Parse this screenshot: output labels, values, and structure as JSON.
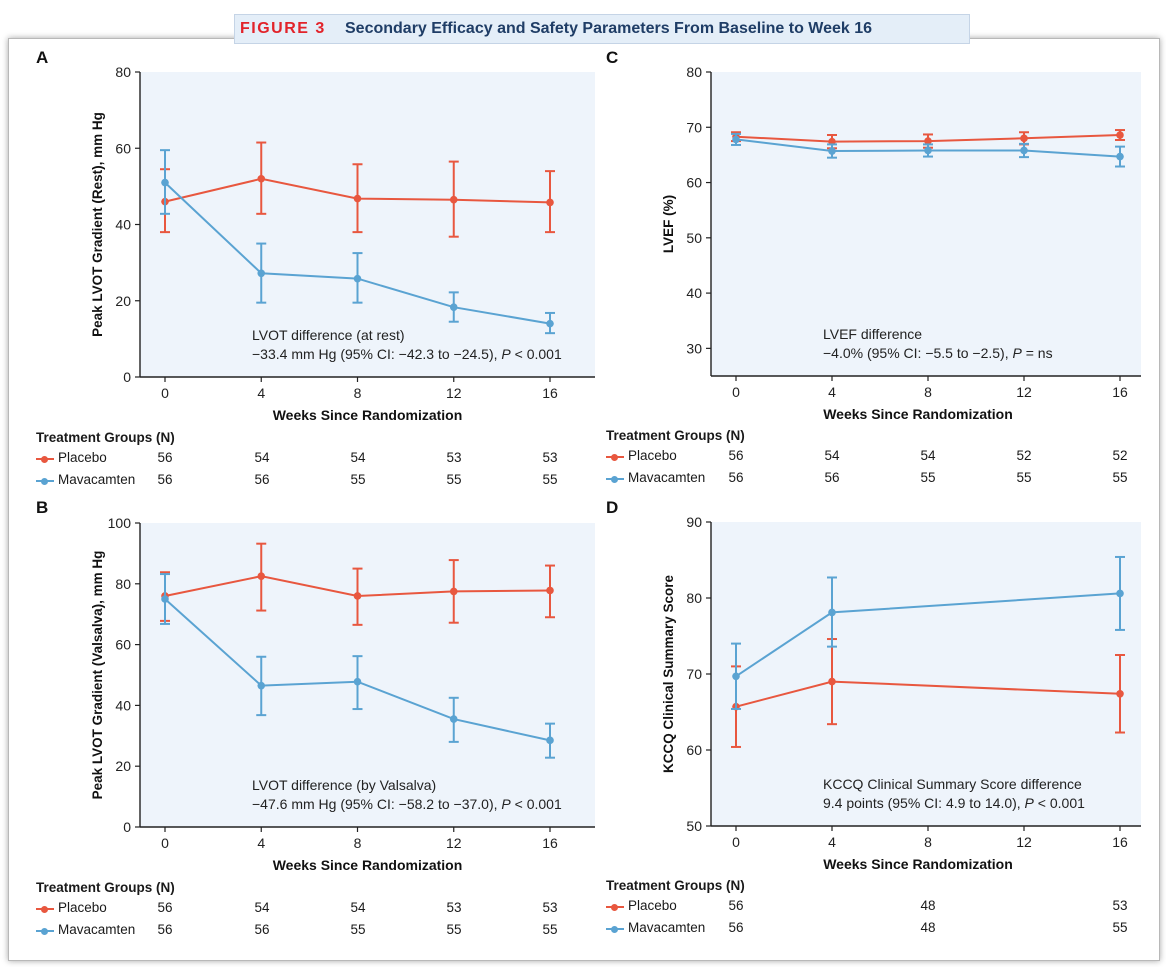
{
  "figure": {
    "label": "FIGURE 3",
    "title": "Secondary Efficacy and Safety Parameters From Baseline to Week 16"
  },
  "colors": {
    "placebo": "#e8573f",
    "mavacamten": "#5aa3d2",
    "plot_bg": "#eef4fb"
  },
  "chart_data": [
    {
      "panel": "A",
      "type": "line",
      "xlabel": "Weeks Since Randomization",
      "ylabel": "Peak LVOT Gradient (Rest), mm Hg",
      "xticks": [
        0,
        4,
        8,
        12,
        16
      ],
      "ylim": [
        0,
        80
      ],
      "yticks": [
        0,
        20,
        40,
        60,
        80
      ],
      "annotation": [
        "LVOT difference (at rest)",
        "−33.4 mm Hg (95% CI: −42.3 to −24.5),",
        " P",
        " < 0.001"
      ],
      "series": [
        {
          "name": "Placebo",
          "x": [
            0,
            4,
            8,
            12,
            16
          ],
          "values": [
            46,
            52,
            46.8,
            46.5,
            45.8
          ],
          "lower": [
            38,
            42.8,
            38,
            36.8,
            38
          ],
          "upper": [
            54.5,
            61.5,
            55.8,
            56.5,
            54
          ]
        },
        {
          "name": "Mavacamten",
          "x": [
            0,
            4,
            8,
            12,
            16
          ],
          "values": [
            51,
            27.2,
            25.8,
            18.3,
            14
          ],
          "lower": [
            42.8,
            19.5,
            19.5,
            14.5,
            11.5
          ],
          "upper": [
            59.5,
            35,
            32.5,
            22.2,
            16.8
          ]
        }
      ],
      "table": {
        "heading": "Treatment Groups (N)",
        "rows": [
          {
            "name": "Placebo",
            "values": [
              "56",
              "54",
              "54",
              "53",
              "53"
            ]
          },
          {
            "name": "Mavacamten",
            "values": [
              "56",
              "56",
              "55",
              "55",
              "55"
            ]
          }
        ]
      }
    },
    {
      "panel": "B",
      "type": "line",
      "xlabel": "Weeks Since Randomization",
      "ylabel": "Peak LVOT Gradient (Valsalva), mm Hg",
      "xticks": [
        0,
        4,
        8,
        12,
        16
      ],
      "ylim": [
        0,
        100
      ],
      "yticks": [
        0,
        20,
        40,
        60,
        80,
        100
      ],
      "annotation": [
        "LVOT difference (by Valsalva)",
        "−47.6 mm Hg (95% CI: −58.2 to −37.0),",
        " P",
        " < 0.001"
      ],
      "series": [
        {
          "name": "Placebo",
          "x": [
            0,
            4,
            8,
            12,
            16
          ],
          "values": [
            76,
            82.5,
            76,
            77.5,
            77.8
          ],
          "lower": [
            67.8,
            71.2,
            66.5,
            67.2,
            69
          ],
          "upper": [
            83.8,
            93.2,
            85,
            87.8,
            86
          ]
        },
        {
          "name": "Mavacamten",
          "x": [
            0,
            4,
            8,
            12,
            16
          ],
          "values": [
            75,
            46.5,
            47.8,
            35.5,
            28.5
          ],
          "lower": [
            66.8,
            36.8,
            38.8,
            28,
            22.8
          ],
          "upper": [
            83.2,
            56,
            56.2,
            42.5,
            34
          ]
        }
      ],
      "table": {
        "heading": "Treatment Groups (N)",
        "rows": [
          {
            "name": "Placebo",
            "values": [
              "56",
              "54",
              "54",
              "53",
              "53"
            ]
          },
          {
            "name": "Mavacamten",
            "values": [
              "56",
              "56",
              "55",
              "55",
              "55"
            ]
          }
        ]
      }
    },
    {
      "panel": "C",
      "type": "line",
      "xlabel": "Weeks Since Randomization",
      "ylabel": "LVEF (%)",
      "xticks": [
        0,
        4,
        8,
        12,
        16
      ],
      "ylim": [
        25,
        80
      ],
      "yticks": [
        30,
        40,
        50,
        60,
        70,
        80
      ],
      "annotation": [
        "LVEF difference",
        "−4.0% (95% CI: −5.5 to −2.5),",
        " P",
        " = ns"
      ],
      "series": [
        {
          "name": "Placebo",
          "x": [
            0,
            4,
            8,
            12,
            16
          ],
          "values": [
            68.3,
            67.4,
            67.5,
            68,
            68.6
          ],
          "lower": [
            67.5,
            66.2,
            66.3,
            66.9,
            67.7
          ],
          "upper": [
            69.1,
            68.6,
            68.7,
            69.1,
            69.5
          ]
        },
        {
          "name": "Mavacamten",
          "x": [
            0,
            4,
            8,
            12,
            16
          ],
          "values": [
            67.8,
            65.7,
            65.8,
            65.8,
            64.7
          ],
          "lower": [
            66.8,
            64.5,
            64.7,
            64.6,
            62.9
          ],
          "upper": [
            68.8,
            66.9,
            66.9,
            67,
            66.5
          ]
        }
      ],
      "table": {
        "heading": "Treatment Groups (N)",
        "rows": [
          {
            "name": "Placebo",
            "values": [
              "56",
              "54",
              "54",
              "52",
              "52"
            ]
          },
          {
            "name": "Mavacamten",
            "values": [
              "56",
              "56",
              "55",
              "55",
              "55"
            ]
          }
        ]
      }
    },
    {
      "panel": "D",
      "type": "line",
      "xlabel": "Weeks Since Randomization",
      "ylabel": "KCCQ Clinical Summary Score",
      "xticks": [
        0,
        4,
        8,
        12,
        16
      ],
      "ylim": [
        50,
        90
      ],
      "yticks": [
        50,
        60,
        70,
        80,
        90
      ],
      "annotation": [
        "KCCQ Clinical Summary Score difference",
        "9.4 points (95% CI: 4.9 to 14.0),",
        " P",
        " < 0.001"
      ],
      "series": [
        {
          "name": "Placebo",
          "x": [
            0,
            4,
            16
          ],
          "values": [
            65.7,
            69,
            67.4
          ],
          "lower": [
            60.4,
            63.4,
            62.3
          ],
          "upper": [
            71,
            74.6,
            72.5
          ]
        },
        {
          "name": "Mavacamten",
          "x": [
            0,
            4,
            16
          ],
          "values": [
            69.7,
            78.1,
            80.6
          ],
          "lower": [
            65.4,
            73.6,
            75.8
          ],
          "upper": [
            74,
            82.7,
            85.4
          ]
        }
      ],
      "table": {
        "heading": "Treatment Groups (N)",
        "rows": [
          {
            "name": "Placebo",
            "values": [
              "56",
              "",
              "48",
              "",
              "53"
            ]
          },
          {
            "name": "Mavacamten",
            "values": [
              "56",
              "",
              "48",
              "",
              "55"
            ]
          }
        ]
      }
    }
  ]
}
